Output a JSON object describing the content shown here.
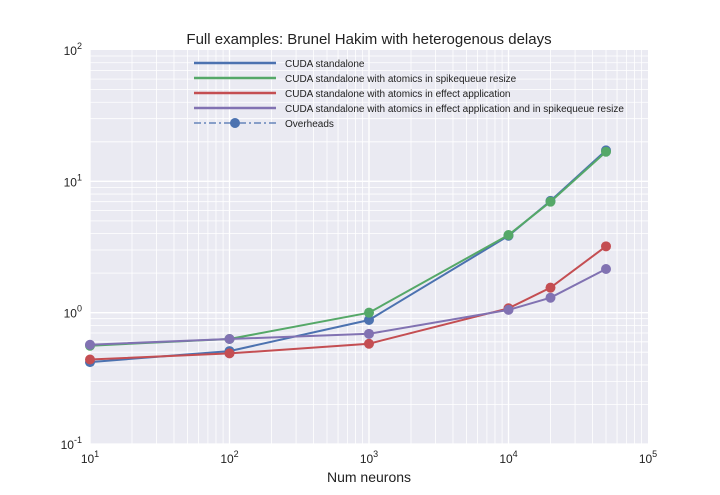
{
  "chart_data": {
    "type": "line",
    "title": "Full examples: Brunel Hakim with heterogenous delays",
    "xlabel": "Num neurons",
    "ylabel": "",
    "x_scale": "log",
    "y_scale": "log",
    "xlim": [
      10,
      100000
    ],
    "ylim": [
      0.1,
      100
    ],
    "grid": true,
    "legend_position": "top-center",
    "x_ticks": [
      {
        "value": 10,
        "base": "10",
        "exp": "1"
      },
      {
        "value": 100,
        "base": "10",
        "exp": "2"
      },
      {
        "value": 1000,
        "base": "10",
        "exp": "3"
      },
      {
        "value": 10000,
        "base": "10",
        "exp": "4"
      },
      {
        "value": 100000,
        "base": "10",
        "exp": "5"
      }
    ],
    "y_ticks": [
      {
        "value": 0.1,
        "base": "10",
        "exp": "-1"
      },
      {
        "value": 1,
        "base": "10",
        "exp": "0"
      },
      {
        "value": 10,
        "base": "10",
        "exp": "1"
      },
      {
        "value": 100,
        "base": "10",
        "exp": "2"
      }
    ],
    "series": [
      {
        "name": "CUDA standalone",
        "color": "#4c72b0",
        "x": [
          10,
          100,
          1000,
          10000,
          20000,
          50000
        ],
        "values": [
          0.42,
          0.51,
          0.88,
          3.85,
          7.1,
          17.2
        ]
      },
      {
        "name": "CUDA standalone with atomics in spikequeue resize",
        "color": "#55a868",
        "x": [
          10,
          100,
          1000,
          10000,
          20000,
          50000
        ],
        "values": [
          0.56,
          0.63,
          1.0,
          3.9,
          7.0,
          16.8
        ]
      },
      {
        "name": "CUDA standalone with atomics in effect application",
        "color": "#c44e52",
        "x": [
          10,
          100,
          1000,
          10000,
          20000,
          50000
        ],
        "values": [
          0.44,
          0.49,
          0.58,
          1.08,
          1.55,
          3.2
        ]
      },
      {
        "name": "CUDA standalone with atomics in effect application and in spikequeue resize",
        "color": "#8172b2",
        "x": [
          10,
          100,
          1000,
          10000,
          20000,
          50000
        ],
        "values": [
          0.57,
          0.63,
          0.69,
          1.05,
          1.3,
          2.15
        ]
      }
    ],
    "legend_extra": {
      "name": "Overheads",
      "color": "#4c72b0",
      "style": "dash-dot with marker"
    },
    "colors": {
      "plot_background": "#eaeaf2",
      "grid": "#ffffff"
    }
  }
}
